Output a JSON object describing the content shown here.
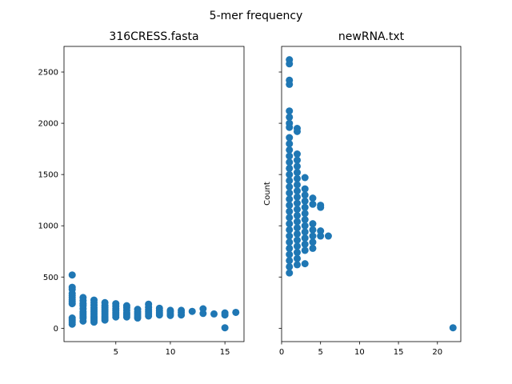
{
  "figure": {
    "suptitle": "5-mer frequency"
  },
  "chart_data": [
    {
      "type": "scatter",
      "title": "316CRESS.fasta",
      "xlabel": "",
      "ylabel": "",
      "xlim": [
        0.25,
        16.75
      ],
      "ylim": [
        -130,
        2750
      ],
      "xticks": [
        5,
        10,
        15
      ],
      "yticks": [
        0,
        500,
        1000,
        1500,
        2000,
        2500
      ],
      "show_ytick_labels": true,
      "color": "#1f77b4",
      "points": [
        {
          "x": 1,
          "y": 520
        },
        {
          "x": 1,
          "y": 400
        },
        {
          "x": 1,
          "y": 380
        },
        {
          "x": 1,
          "y": 340
        },
        {
          "x": 1,
          "y": 320
        },
        {
          "x": 1,
          "y": 300
        },
        {
          "x": 1,
          "y": 280
        },
        {
          "x": 1,
          "y": 260
        },
        {
          "x": 1,
          "y": 240
        },
        {
          "x": 1,
          "y": 100
        },
        {
          "x": 1,
          "y": 80
        },
        {
          "x": 1,
          "y": 60
        },
        {
          "x": 1,
          "y": 40
        },
        {
          "x": 2,
          "y": 300
        },
        {
          "x": 2,
          "y": 270
        },
        {
          "x": 2,
          "y": 240
        },
        {
          "x": 2,
          "y": 220
        },
        {
          "x": 2,
          "y": 190
        },
        {
          "x": 2,
          "y": 160
        },
        {
          "x": 2,
          "y": 140
        },
        {
          "x": 2,
          "y": 120
        },
        {
          "x": 2,
          "y": 100
        },
        {
          "x": 2,
          "y": 70
        },
        {
          "x": 3,
          "y": 275
        },
        {
          "x": 3,
          "y": 250
        },
        {
          "x": 3,
          "y": 225
        },
        {
          "x": 3,
          "y": 200
        },
        {
          "x": 3,
          "y": 180
        },
        {
          "x": 3,
          "y": 160
        },
        {
          "x": 3,
          "y": 140
        },
        {
          "x": 3,
          "y": 120
        },
        {
          "x": 3,
          "y": 100
        },
        {
          "x": 3,
          "y": 80
        },
        {
          "x": 3,
          "y": 60
        },
        {
          "x": 4,
          "y": 250
        },
        {
          "x": 4,
          "y": 220
        },
        {
          "x": 4,
          "y": 200
        },
        {
          "x": 4,
          "y": 180
        },
        {
          "x": 4,
          "y": 160
        },
        {
          "x": 4,
          "y": 140
        },
        {
          "x": 4,
          "y": 120
        },
        {
          "x": 4,
          "y": 100
        },
        {
          "x": 4,
          "y": 80
        },
        {
          "x": 5,
          "y": 240
        },
        {
          "x": 5,
          "y": 215
        },
        {
          "x": 5,
          "y": 190
        },
        {
          "x": 5,
          "y": 170
        },
        {
          "x": 5,
          "y": 150
        },
        {
          "x": 5,
          "y": 130
        },
        {
          "x": 5,
          "y": 110
        },
        {
          "x": 6,
          "y": 220
        },
        {
          "x": 6,
          "y": 200
        },
        {
          "x": 6,
          "y": 175
        },
        {
          "x": 6,
          "y": 150
        },
        {
          "x": 6,
          "y": 130
        },
        {
          "x": 6,
          "y": 110
        },
        {
          "x": 7,
          "y": 185
        },
        {
          "x": 7,
          "y": 160
        },
        {
          "x": 7,
          "y": 140
        },
        {
          "x": 7,
          "y": 120
        },
        {
          "x": 7,
          "y": 100
        },
        {
          "x": 8,
          "y": 235
        },
        {
          "x": 8,
          "y": 205
        },
        {
          "x": 8,
          "y": 180
        },
        {
          "x": 8,
          "y": 160
        },
        {
          "x": 8,
          "y": 140
        },
        {
          "x": 8,
          "y": 120
        },
        {
          "x": 9,
          "y": 195
        },
        {
          "x": 9,
          "y": 170
        },
        {
          "x": 9,
          "y": 150
        },
        {
          "x": 9,
          "y": 130
        },
        {
          "x": 10,
          "y": 175
        },
        {
          "x": 10,
          "y": 160
        },
        {
          "x": 10,
          "y": 140
        },
        {
          "x": 10,
          "y": 125
        },
        {
          "x": 11,
          "y": 175
        },
        {
          "x": 11,
          "y": 155
        },
        {
          "x": 11,
          "y": 130
        },
        {
          "x": 12,
          "y": 165
        },
        {
          "x": 13,
          "y": 190
        },
        {
          "x": 13,
          "y": 145
        },
        {
          "x": 14,
          "y": 140
        },
        {
          "x": 15,
          "y": 150
        },
        {
          "x": 15,
          "y": 130
        },
        {
          "x": 15,
          "y": 5
        },
        {
          "x": 16,
          "y": 155
        }
      ]
    },
    {
      "type": "scatter",
      "title": "newRNA.txt",
      "xlabel": "",
      "ylabel": "Count",
      "xlim": [
        0,
        23
      ],
      "ylim": [
        -130,
        2750
      ],
      "xticks": [
        0,
        5,
        10,
        15,
        20
      ],
      "yticks": [
        0,
        500,
        1000,
        1500,
        2000,
        2500
      ],
      "show_ytick_labels": false,
      "color": "#1f77b4",
      "points": [
        {
          "x": 1,
          "y": 2620
        },
        {
          "x": 1,
          "y": 2580
        },
        {
          "x": 1,
          "y": 2420
        },
        {
          "x": 1,
          "y": 2380
        },
        {
          "x": 1,
          "y": 2120
        },
        {
          "x": 1,
          "y": 2060
        },
        {
          "x": 1,
          "y": 2000
        },
        {
          "x": 1,
          "y": 1960
        },
        {
          "x": 1,
          "y": 1860
        },
        {
          "x": 1,
          "y": 1800
        },
        {
          "x": 1,
          "y": 1740
        },
        {
          "x": 1,
          "y": 1680
        },
        {
          "x": 1,
          "y": 1620
        },
        {
          "x": 1,
          "y": 1560
        },
        {
          "x": 1,
          "y": 1500
        },
        {
          "x": 1,
          "y": 1440
        },
        {
          "x": 1,
          "y": 1380
        },
        {
          "x": 1,
          "y": 1320
        },
        {
          "x": 1,
          "y": 1260
        },
        {
          "x": 1,
          "y": 1200
        },
        {
          "x": 1,
          "y": 1140
        },
        {
          "x": 1,
          "y": 1080
        },
        {
          "x": 1,
          "y": 1020
        },
        {
          "x": 1,
          "y": 960
        },
        {
          "x": 1,
          "y": 900
        },
        {
          "x": 1,
          "y": 840
        },
        {
          "x": 1,
          "y": 780
        },
        {
          "x": 1,
          "y": 720
        },
        {
          "x": 1,
          "y": 660
        },
        {
          "x": 1,
          "y": 600
        },
        {
          "x": 1,
          "y": 540
        },
        {
          "x": 2,
          "y": 1950
        },
        {
          "x": 2,
          "y": 1920
        },
        {
          "x": 2,
          "y": 1700
        },
        {
          "x": 2,
          "y": 1640
        },
        {
          "x": 2,
          "y": 1580
        },
        {
          "x": 2,
          "y": 1520
        },
        {
          "x": 2,
          "y": 1460
        },
        {
          "x": 2,
          "y": 1400
        },
        {
          "x": 2,
          "y": 1340
        },
        {
          "x": 2,
          "y": 1280
        },
        {
          "x": 2,
          "y": 1220
        },
        {
          "x": 2,
          "y": 1160
        },
        {
          "x": 2,
          "y": 1100
        },
        {
          "x": 2,
          "y": 1040
        },
        {
          "x": 2,
          "y": 980
        },
        {
          "x": 2,
          "y": 920
        },
        {
          "x": 2,
          "y": 860
        },
        {
          "x": 2,
          "y": 800
        },
        {
          "x": 2,
          "y": 740
        },
        {
          "x": 2,
          "y": 680
        },
        {
          "x": 2,
          "y": 620
        },
        {
          "x": 3,
          "y": 1470
        },
        {
          "x": 3,
          "y": 1360
        },
        {
          "x": 3,
          "y": 1300
        },
        {
          "x": 3,
          "y": 1240
        },
        {
          "x": 3,
          "y": 1180
        },
        {
          "x": 3,
          "y": 1120
        },
        {
          "x": 3,
          "y": 1060
        },
        {
          "x": 3,
          "y": 1000
        },
        {
          "x": 3,
          "y": 940
        },
        {
          "x": 3,
          "y": 880
        },
        {
          "x": 3,
          "y": 820
        },
        {
          "x": 3,
          "y": 760
        },
        {
          "x": 3,
          "y": 630
        },
        {
          "x": 4,
          "y": 1270
        },
        {
          "x": 4,
          "y": 1210
        },
        {
          "x": 4,
          "y": 1020
        },
        {
          "x": 4,
          "y": 960
        },
        {
          "x": 4,
          "y": 900
        },
        {
          "x": 4,
          "y": 840
        },
        {
          "x": 4,
          "y": 780
        },
        {
          "x": 5,
          "y": 1200
        },
        {
          "x": 5,
          "y": 1180
        },
        {
          "x": 5,
          "y": 950
        },
        {
          "x": 5,
          "y": 900
        },
        {
          "x": 6,
          "y": 900
        },
        {
          "x": 22,
          "y": 5
        }
      ]
    }
  ]
}
